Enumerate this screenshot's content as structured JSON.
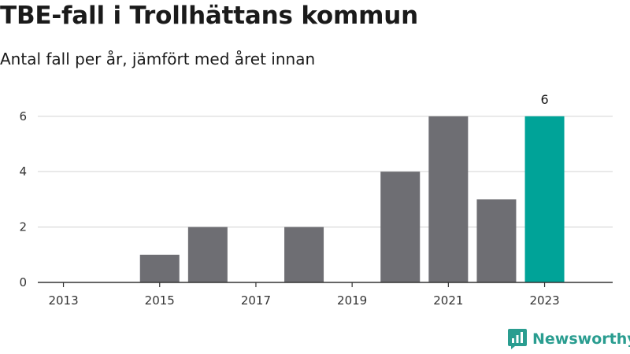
{
  "title": "TBE-fall i Trollhättans kommun",
  "subtitle": "Antal fall per år, jämfört med året innan",
  "brand": {
    "name": "Newsworthy",
    "icon": "newsworthy-logo-icon",
    "color": "#2a9d90"
  },
  "colors": {
    "bar": "#6e6e73",
    "highlight": "#00a398",
    "grid": "#d9d9d9",
    "axis": "#333333"
  },
  "chart_data": {
    "type": "bar",
    "title": "TBE-fall i Trollhättans kommun",
    "subtitle": "Antal fall per år, jämfört med året innan",
    "categories": [
      "2013",
      "2014",
      "2015",
      "2016",
      "2017",
      "2018",
      "2019",
      "2020",
      "2021",
      "2022",
      "2023"
    ],
    "values": [
      0,
      0,
      1,
      2,
      0,
      2,
      0,
      4,
      6,
      3,
      6
    ],
    "highlight_category": "2023",
    "data_labels": [
      {
        "category": "2023",
        "text": "6"
      }
    ],
    "x_tick_labels": [
      "2013",
      "2015",
      "2017",
      "2019",
      "2021",
      "2023"
    ],
    "y_ticks": [
      0,
      2,
      4,
      6
    ],
    "ylim": [
      0,
      6.5
    ],
    "xlabel": "",
    "ylabel": "",
    "grid": true,
    "legend": "none"
  }
}
